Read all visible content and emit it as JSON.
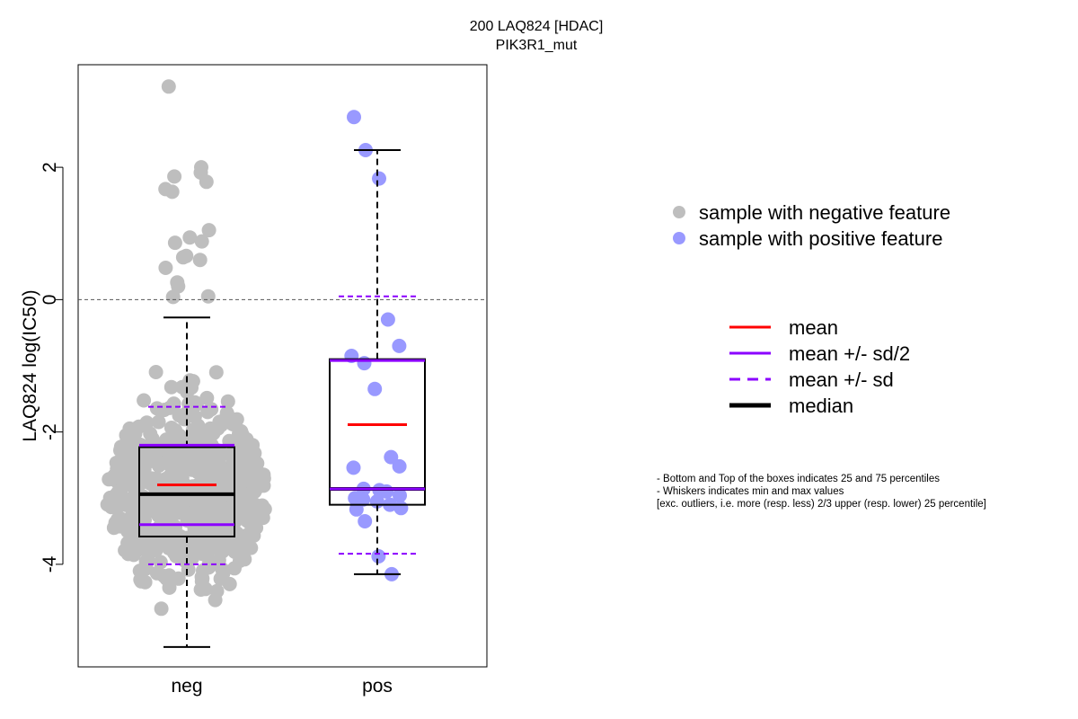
{
  "chart_data": {
    "type": "box",
    "title": "200 LAQ824 [HDAC]",
    "subtitle": "PIK3R1_mut",
    "xlabel": "",
    "ylabel": "LAQ824 log(IC50)",
    "ylim": [
      -5.55,
      3.55
    ],
    "y_ticks": [
      -4,
      -2,
      0,
      2
    ],
    "reference_line_y": 0,
    "categories": [
      "neg",
      "pos"
    ],
    "groups": [
      {
        "name": "neg",
        "color": "#bebebe",
        "n_points": 600,
        "q1": -3.58,
        "median": -2.94,
        "q3": -2.23,
        "whisker_low": -5.25,
        "whisker_high": -0.27,
        "mean": -2.8,
        "mean_minus_half_sd": -3.4,
        "mean_plus_half_sd": -2.2,
        "mean_minus_sd": -4.0,
        "mean_plus_sd": -1.62,
        "points_above_whisker": [
          3.22,
          2.0,
          1.92,
          1.86,
          1.78,
          1.67,
          1.63,
          1.05,
          0.94,
          0.88,
          0.86,
          0.66,
          0.64,
          0.6,
          0.48,
          0.26,
          0.2,
          0.04,
          0.05
        ]
      },
      {
        "name": "pos",
        "color": "#9999ff",
        "q1": -3.1,
        "median": -2.86,
        "q3": -0.9,
        "whisker_low": -4.15,
        "whisker_high": 2.26,
        "mean": -1.89,
        "mean_minus_half_sd": -2.86,
        "mean_plus_half_sd": -0.92,
        "mean_minus_sd": -3.84,
        "mean_plus_sd": 0.05,
        "points": [
          2.76,
          2.26,
          1.83,
          -0.3,
          -0.7,
          -0.85,
          -0.96,
          -1.35,
          -2.38,
          -2.52,
          -2.54,
          -2.86,
          -2.88,
          -2.9,
          -2.96,
          -3.0,
          -3.02,
          -3.05,
          -3.1,
          -3.15,
          -3.17,
          -3.35,
          -3.88,
          -4.15
        ]
      }
    ],
    "legend": {
      "placement": "right",
      "points": [
        {
          "label": "sample with negative feature",
          "color": "#bebebe"
        },
        {
          "label": "sample with positive feature",
          "color": "#9999ff"
        }
      ],
      "lines": [
        {
          "label": "mean",
          "color": "#ff0000",
          "style": "solid"
        },
        {
          "label": "mean +/- sd/2",
          "color": "#8b00ff",
          "style": "solid"
        },
        {
          "label": "mean +/- sd",
          "color": "#8b00ff",
          "style": "dashed"
        },
        {
          "label": "median",
          "color": "#000000",
          "style": "solid-thick"
        }
      ]
    },
    "notes": [
      "- Bottom and Top of the boxes indicates 25 and 75 percentiles",
      "- Whiskers indicates min and max values",
      "[exc. outliers, i.e. more (resp. less) 2/3 upper (resp. lower) 25 percentile]"
    ]
  }
}
